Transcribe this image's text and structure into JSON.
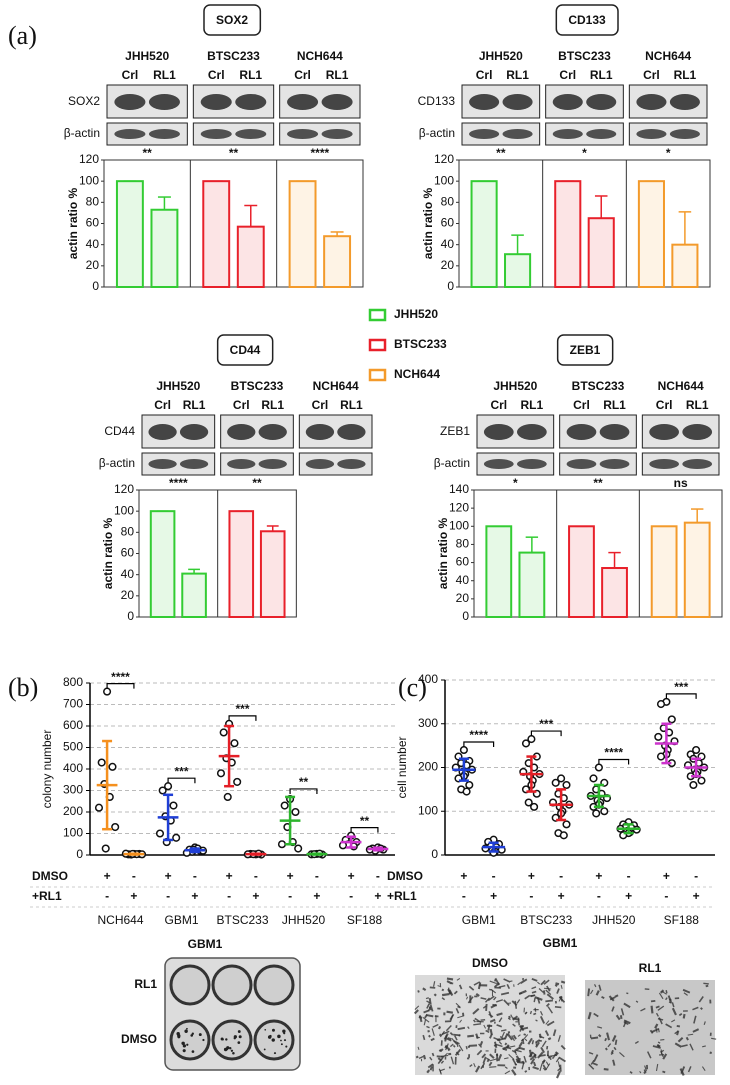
{
  "figure": {
    "panel_labels": [
      "(a)",
      "(b)",
      "(c)"
    ],
    "legend": [
      {
        "name": "JHH520",
        "color": "#33cc33"
      },
      {
        "name": "BTSC233",
        "color": "#e8202a"
      },
      {
        "name": "NCH644",
        "color": "#f39a2b"
      }
    ],
    "plate_title": "GBM1",
    "plate_rows": [
      "RL1",
      "DMSO"
    ],
    "micro_title": "GBM1",
    "micro_labels": [
      "DMSO",
      "RL1"
    ]
  },
  "chart_data": [
    {
      "type": "bar",
      "title": "SOX2",
      "ylabel": "actin ratio %",
      "blot_labels": [
        "SOX2",
        "β-actin"
      ],
      "lanes": [
        "Crl",
        "RL1"
      ],
      "ylim": [
        0,
        120
      ],
      "yticks": [
        0,
        20,
        40,
        60,
        80,
        100,
        120
      ],
      "series": [
        {
          "name": "JHH520",
          "color": "#33cc33",
          "values": [
            100,
            73
          ],
          "errors": [
            0,
            12
          ]
        },
        {
          "name": "BTSC233",
          "color": "#e8202a",
          "values": [
            100,
            57
          ],
          "errors": [
            0,
            20
          ]
        },
        {
          "name": "NCH644",
          "color": "#f39a2b",
          "values": [
            100,
            48
          ],
          "errors": [
            0,
            4
          ]
        }
      ],
      "significance": [
        "**",
        "**",
        "****"
      ]
    },
    {
      "type": "bar",
      "title": "CD133",
      "ylabel": "actin ratio %",
      "blot_labels": [
        "CD133",
        "β-actin"
      ],
      "lanes": [
        "Crl",
        "RL1"
      ],
      "ylim": [
        0,
        120
      ],
      "yticks": [
        0,
        20,
        40,
        60,
        80,
        100,
        120
      ],
      "series": [
        {
          "name": "JHH520",
          "color": "#33cc33",
          "values": [
            100,
            31
          ],
          "errors": [
            0,
            18
          ]
        },
        {
          "name": "BTSC233",
          "color": "#e8202a",
          "values": [
            100,
            65
          ],
          "errors": [
            0,
            21
          ]
        },
        {
          "name": "NCH644",
          "color": "#f39a2b",
          "values": [
            100,
            40
          ],
          "errors": [
            0,
            31
          ]
        }
      ],
      "significance": [
        "**",
        "*",
        "*"
      ]
    },
    {
      "type": "bar",
      "title": "CD44",
      "ylabel": "actin ratio %",
      "blot_labels": [
        "CD44",
        "β-actin"
      ],
      "lanes": [
        "Crl",
        "RL1"
      ],
      "ylim": [
        0,
        120
      ],
      "yticks": [
        0,
        20,
        40,
        60,
        80,
        100,
        120
      ],
      "series": [
        {
          "name": "JHH520",
          "color": "#33cc33",
          "values": [
            100,
            41
          ],
          "errors": [
            0,
            4
          ]
        },
        {
          "name": "BTSC233",
          "color": "#e8202a",
          "values": [
            100,
            81
          ],
          "errors": [
            0,
            5
          ]
        },
        {
          "name": "NCH644",
          "color": "#f39a2b",
          "values": [
            null,
            null
          ],
          "errors": [
            null,
            null
          ]
        }
      ],
      "significance": [
        "****",
        "**",
        null
      ]
    },
    {
      "type": "bar",
      "title": "ZEB1",
      "ylabel": "actin ratio %",
      "blot_labels": [
        "ZEB1",
        "β-actin"
      ],
      "lanes": [
        "Crl",
        "RL1"
      ],
      "ylim": [
        0,
        140
      ],
      "yticks": [
        0,
        20,
        40,
        60,
        80,
        100,
        120,
        140
      ],
      "series": [
        {
          "name": "JHH520",
          "color": "#33cc33",
          "values": [
            100,
            71
          ],
          "errors": [
            0,
            17
          ]
        },
        {
          "name": "BTSC233",
          "color": "#e8202a",
          "values": [
            100,
            54
          ],
          "errors": [
            0,
            17
          ]
        },
        {
          "name": "NCH644",
          "color": "#f39a2b",
          "values": [
            100,
            104
          ],
          "errors": [
            0,
            15
          ]
        }
      ],
      "significance": [
        "*",
        "**",
        "ns"
      ]
    },
    {
      "type": "dot",
      "ylabel": "colony number",
      "ylim": [
        0,
        800
      ],
      "yticks": [
        0,
        100,
        200,
        300,
        400,
        500,
        600,
        700,
        800
      ],
      "grid": true,
      "categories": [
        "NCH644",
        "GBM1",
        "BTSC233",
        "JHH520",
        "SF188"
      ],
      "colors": [
        "#f5901e",
        "#1f3fd6",
        "#e41e26",
        "#2db52d",
        "#cc33cc"
      ],
      "treatments": [
        "DMSO",
        "+RL1"
      ],
      "signs": [
        "+",
        "-"
      ],
      "significance": [
        "****",
        "***",
        "***",
        "**",
        "**"
      ],
      "data": [
        [
          {
            "points": [
              760,
              430,
              410,
              330,
              270,
              220,
              130,
              30
            ],
            "mean": 325,
            "sd": 205
          },
          {
            "points": [
              5,
              3,
              5,
              2,
              4,
              6,
              3,
              5
            ],
            "mean": 4,
            "sd": 2
          }
        ],
        [
          {
            "points": [
              320,
              300,
              230,
              180,
              160,
              100,
              80,
              60
            ],
            "mean": 175,
            "sd": 105
          },
          {
            "points": [
              35,
              25,
              20,
              15,
              30,
              10,
              20,
              25
            ],
            "mean": 22,
            "sd": 8
          }
        ],
        [
          {
            "points": [
              610,
              570,
              520,
              450,
              430,
              380,
              340,
              270
            ],
            "mean": 460,
            "sd": 140
          },
          {
            "points": [
              3,
              5,
              2,
              4,
              6,
              3
            ],
            "mean": 4,
            "sd": 2
          }
        ],
        [
          {
            "points": [
              260,
              230,
              200,
              130,
              60,
              50,
              30
            ],
            "mean": 160,
            "sd": 110
          },
          {
            "points": [
              5,
              3,
              2,
              4,
              6
            ],
            "mean": 4,
            "sd": 2
          }
        ],
        [
          {
            "points": [
              90,
              70,
              60,
              50,
              40,
              45
            ],
            "mean": 60,
            "sd": 25
          },
          {
            "points": [
              35,
              30,
              25,
              20,
              30,
              25
            ],
            "mean": 28,
            "sd": 6
          }
        ]
      ]
    },
    {
      "type": "dot",
      "ylabel": "cell number",
      "ylim": [
        0,
        400
      ],
      "yticks": [
        0,
        100,
        200,
        300,
        400
      ],
      "grid": true,
      "categories": [
        "GBM1",
        "BTSC233",
        "JHH520",
        "SF188"
      ],
      "colors": [
        "#1f3fd6",
        "#e41e26",
        "#2db52d",
        "#cc33cc"
      ],
      "treatments": [
        "DMSO",
        "+RL1"
      ],
      "signs": [
        "+",
        "-"
      ],
      "significance": [
        "****",
        "***",
        "****",
        "***"
      ],
      "data": [
        [
          {
            "points": [
              240,
              225,
              215,
              210,
              205,
              200,
              195,
              190,
              185,
              180,
              175,
              160,
              150,
              145
            ],
            "mean": 195,
            "sd": 25
          },
          {
            "points": [
              35,
              30,
              25,
              20,
              18,
              15,
              12,
              10,
              8,
              5
            ],
            "mean": 18,
            "sd": 10
          }
        ],
        [
          {
            "points": [
              265,
              255,
              225,
              210,
              200,
              190,
              185,
              180,
              170,
              160,
              150,
              140,
              120,
              110
            ],
            "mean": 185,
            "sd": 40
          },
          {
            "points": [
              175,
              165,
              160,
              140,
              130,
              120,
              115,
              110,
              100,
              95,
              85,
              70,
              50,
              45
            ],
            "mean": 115,
            "sd": 35
          }
        ],
        [
          {
            "points": [
              200,
              175,
              165,
              150,
              140,
              135,
              130,
              125,
              120,
              115,
              110,
              100,
              95
            ],
            "mean": 135,
            "sd": 25
          },
          {
            "points": [
              75,
              70,
              68,
              65,
              62,
              60,
              58,
              55,
              52,
              50,
              45
            ],
            "mean": 60,
            "sd": 10
          }
        ],
        [
          {
            "points": [
              350,
              345,
              310,
              290,
              280,
              270,
              260,
              250,
              240,
              230,
              225,
              210
            ],
            "mean": 255,
            "sd": 45
          },
          {
            "points": [
              240,
              230,
              225,
              220,
              210,
              205,
              200,
              195,
              190,
              185,
              180,
              170,
              160
            ],
            "mean": 200,
            "sd": 20
          }
        ]
      ]
    }
  ]
}
